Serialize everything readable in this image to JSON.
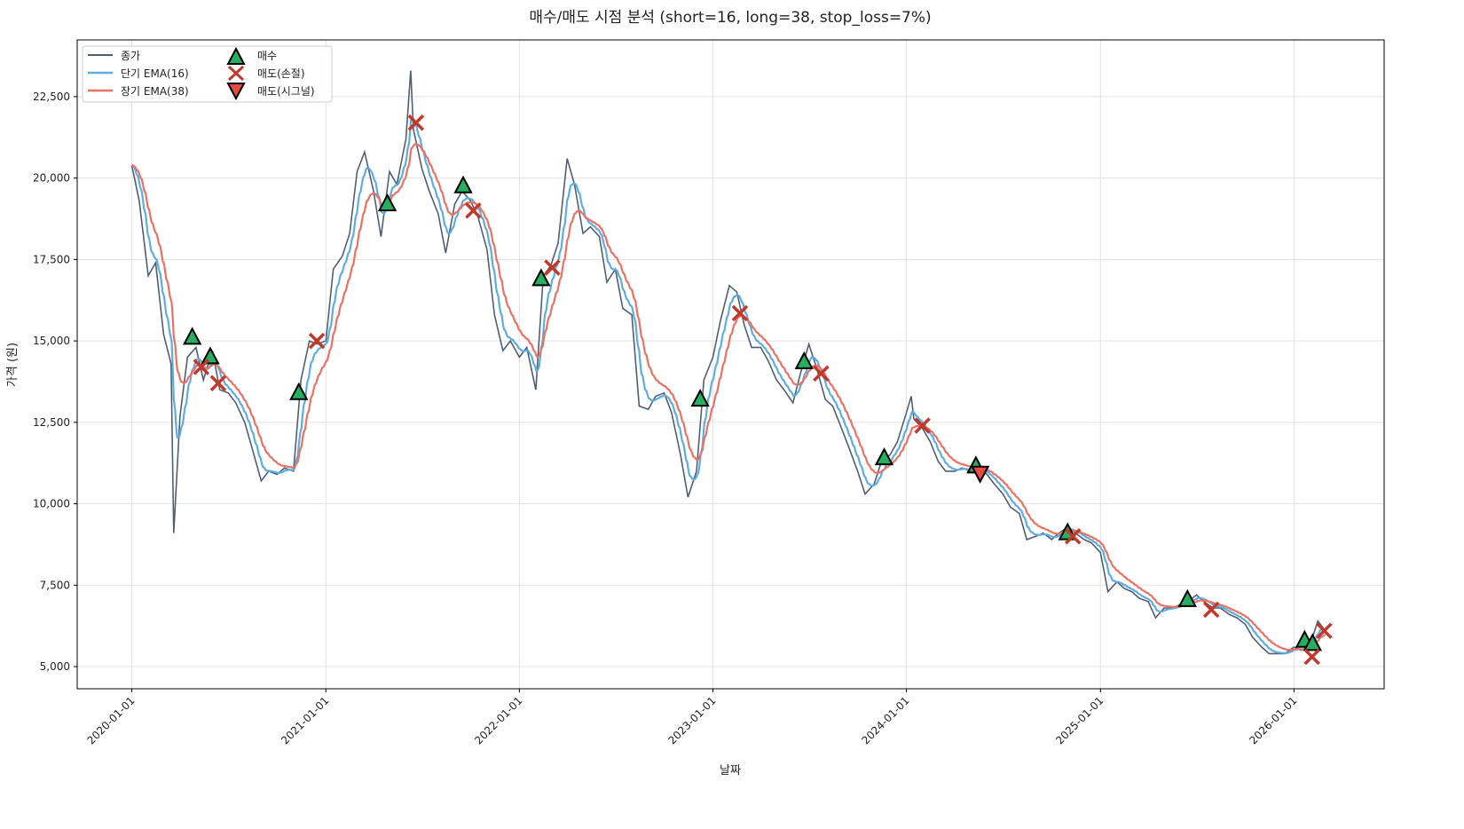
{
  "chart_data": {
    "type": "line",
    "title": "매수/매도 시점 분석 (short=16, long=38, stop_loss=7%)",
    "xlabel": "날짜",
    "ylabel": "가격 (원)",
    "ylim": [
      4320,
      24240
    ],
    "xlim": [
      "2019-09-20",
      "2026-06-20"
    ],
    "grid": true,
    "legend_position": "top-left",
    "yticks": [
      5000,
      7500,
      10000,
      12500,
      15000,
      17500,
      20000,
      22500
    ],
    "ytick_labels": [
      "5,000",
      "7,500",
      "10,000",
      "12,500",
      "15,000",
      "17,500",
      "20,000",
      "22,500"
    ],
    "xticks": [
      "2020-01-01",
      "2021-01-01",
      "2022-01-01",
      "2023-01-01",
      "2024-01-01",
      "2025-01-01",
      "2026-01-01"
    ],
    "legend": {
      "close": "종가",
      "short_ema": "단기 EMA(16)",
      "long_ema": "장기 EMA(38)",
      "buy": "매수",
      "sell_stop": "매도(손절)",
      "sell_signal": "매도(시그널)"
    },
    "colors": {
      "close": "#4f5f73",
      "short_ema": "#5dade2",
      "long_ema": "#ec7063",
      "buy": "#27ae60",
      "sell_stop": "#c0392b",
      "sell_signal": "#e74c3c"
    },
    "ema_spans": {
      "short": 16,
      "long": 38
    },
    "close": [
      [
        "2020-01-01",
        20400
      ],
      [
        "2020-01-15",
        19300
      ],
      [
        "2020-02-01",
        17000
      ],
      [
        "2020-02-15",
        17400
      ],
      [
        "2020-03-01",
        15200
      ],
      [
        "2020-03-15",
        14300
      ],
      [
        "2020-03-20",
        9100
      ],
      [
        "2020-04-01",
        12700
      ],
      [
        "2020-04-15",
        14500
      ],
      [
        "2020-05-01",
        14800
      ],
      [
        "2020-05-15",
        13800
      ],
      [
        "2020-06-01",
        14700
      ],
      [
        "2020-06-15",
        13500
      ],
      [
        "2020-07-01",
        13400
      ],
      [
        "2020-07-15",
        13100
      ],
      [
        "2020-08-01",
        12500
      ],
      [
        "2020-08-15",
        11700
      ],
      [
        "2020-09-01",
        10700
      ],
      [
        "2020-09-15",
        11000
      ],
      [
        "2020-10-01",
        10900
      ],
      [
        "2020-10-15",
        11100
      ],
      [
        "2020-11-01",
        11000
      ],
      [
        "2020-11-15",
        13800
      ],
      [
        "2020-12-01",
        15000
      ],
      [
        "2020-12-15",
        14900
      ],
      [
        "2021-01-01",
        15000
      ],
      [
        "2021-01-15",
        17200
      ],
      [
        "2021-02-01",
        17600
      ],
      [
        "2021-02-15",
        18300
      ],
      [
        "2021-03-01",
        20200
      ],
      [
        "2021-03-15",
        20800
      ],
      [
        "2021-04-01",
        19600
      ],
      [
        "2021-04-15",
        18200
      ],
      [
        "2021-05-01",
        20200
      ],
      [
        "2021-05-15",
        19800
      ],
      [
        "2021-06-01",
        21200
      ],
      [
        "2021-06-10",
        23300
      ],
      [
        "2021-06-15",
        21500
      ],
      [
        "2021-07-01",
        20300
      ],
      [
        "2021-07-15",
        19600
      ],
      [
        "2021-08-01",
        18900
      ],
      [
        "2021-08-15",
        17700
      ],
      [
        "2021-09-01",
        19200
      ],
      [
        "2021-09-15",
        19600
      ],
      [
        "2021-10-01",
        19300
      ],
      [
        "2021-10-15",
        18800
      ],
      [
        "2021-11-01",
        17800
      ],
      [
        "2021-11-15",
        15800
      ],
      [
        "2021-12-01",
        14700
      ],
      [
        "2021-12-15",
        15000
      ],
      [
        "2022-01-01",
        14500
      ],
      [
        "2022-01-15",
        14800
      ],
      [
        "2022-02-01",
        13500
      ],
      [
        "2022-02-15",
        17000
      ],
      [
        "2022-03-01",
        17300
      ],
      [
        "2022-03-15",
        18000
      ],
      [
        "2022-04-01",
        20600
      ],
      [
        "2022-04-15",
        19800
      ],
      [
        "2022-05-01",
        18300
      ],
      [
        "2022-05-15",
        18500
      ],
      [
        "2022-06-01",
        18200
      ],
      [
        "2022-06-15",
        16800
      ],
      [
        "2022-07-01",
        17200
      ],
      [
        "2022-07-15",
        16000
      ],
      [
        "2022-08-01",
        15800
      ],
      [
        "2022-08-15",
        13000
      ],
      [
        "2022-09-01",
        12900
      ],
      [
        "2022-09-15",
        13300
      ],
      [
        "2022-10-01",
        13400
      ],
      [
        "2022-10-15",
        12800
      ],
      [
        "2022-11-01",
        11500
      ],
      [
        "2022-11-15",
        10200
      ],
      [
        "2022-12-01",
        11000
      ],
      [
        "2022-12-15",
        13800
      ],
      [
        "2023-01-01",
        14500
      ],
      [
        "2023-01-15",
        15600
      ],
      [
        "2023-02-01",
        16700
      ],
      [
        "2023-02-15",
        16500
      ],
      [
        "2023-03-01",
        15500
      ],
      [
        "2023-03-15",
        14800
      ],
      [
        "2023-04-01",
        14800
      ],
      [
        "2023-04-15",
        14400
      ],
      [
        "2023-05-01",
        13800
      ],
      [
        "2023-05-15",
        13500
      ],
      [
        "2023-06-01",
        13100
      ],
      [
        "2023-06-15",
        14000
      ],
      [
        "2023-07-01",
        14900
      ],
      [
        "2023-07-15",
        14200
      ],
      [
        "2023-08-01",
        13200
      ],
      [
        "2023-08-15",
        13000
      ],
      [
        "2023-09-01",
        12300
      ],
      [
        "2023-09-15",
        11700
      ],
      [
        "2023-10-01",
        11000
      ],
      [
        "2023-10-15",
        10300
      ],
      [
        "2023-11-01",
        10600
      ],
      [
        "2023-11-15",
        11300
      ],
      [
        "2023-12-01",
        11500
      ],
      [
        "2023-12-15",
        11900
      ],
      [
        "2024-01-01",
        12800
      ],
      [
        "2024-01-10",
        13300
      ],
      [
        "2024-01-15",
        12600
      ],
      [
        "2024-02-01",
        12300
      ],
      [
        "2024-02-15",
        11900
      ],
      [
        "2024-03-01",
        11300
      ],
      [
        "2024-03-15",
        11000
      ],
      [
        "2024-04-01",
        11000
      ],
      [
        "2024-04-15",
        11100
      ],
      [
        "2024-05-01",
        11000
      ],
      [
        "2024-05-15",
        11100
      ],
      [
        "2024-06-01",
        10900
      ],
      [
        "2024-06-15",
        10600
      ],
      [
        "2024-07-01",
        10300
      ],
      [
        "2024-07-15",
        9900
      ],
      [
        "2024-08-01",
        9700
      ],
      [
        "2024-08-15",
        8900
      ],
      [
        "2024-09-01",
        9000
      ],
      [
        "2024-09-15",
        9100
      ],
      [
        "2024-10-01",
        8900
      ],
      [
        "2024-10-15",
        9100
      ],
      [
        "2024-11-01",
        9300
      ],
      [
        "2024-11-15",
        9100
      ],
      [
        "2024-12-01",
        8900
      ],
      [
        "2024-12-15",
        8800
      ],
      [
        "2025-01-01",
        8500
      ],
      [
        "2025-01-15",
        7300
      ],
      [
        "2025-02-01",
        7600
      ],
      [
        "2025-02-15",
        7400
      ],
      [
        "2025-03-01",
        7300
      ],
      [
        "2025-03-15",
        7100
      ],
      [
        "2025-04-01",
        7000
      ],
      [
        "2025-04-15",
        6500
      ],
      [
        "2025-05-01",
        6800
      ],
      [
        "2025-05-15",
        6800
      ],
      [
        "2025-06-01",
        6900
      ],
      [
        "2025-06-15",
        7000
      ],
      [
        "2025-07-01",
        7200
      ],
      [
        "2025-07-15",
        7000
      ],
      [
        "2025-08-01",
        6800
      ],
      [
        "2025-08-15",
        6800
      ],
      [
        "2025-09-01",
        6600
      ],
      [
        "2025-09-15",
        6500
      ],
      [
        "2025-10-01",
        6300
      ],
      [
        "2025-10-15",
        5900
      ],
      [
        "2025-11-01",
        5600
      ],
      [
        "2025-11-15",
        5400
      ],
      [
        "2025-12-01",
        5400
      ],
      [
        "2025-12-15",
        5400
      ],
      [
        "2026-01-01",
        5600
      ],
      [
        "2026-01-15",
        5500
      ],
      [
        "2026-02-01",
        5700
      ],
      [
        "2026-02-15",
        6400
      ],
      [
        "2026-03-01",
        6100
      ]
    ],
    "buy_signals": [
      [
        "2020-04-24",
        15100
      ],
      [
        "2020-05-28",
        14500
      ],
      [
        "2020-11-11",
        13400
      ],
      [
        "2021-04-27",
        19200
      ],
      [
        "2021-09-17",
        19750
      ],
      [
        "2022-02-11",
        16900
      ],
      [
        "2022-12-08",
        13200
      ],
      [
        "2023-06-22",
        14350
      ],
      [
        "2023-11-20",
        11400
      ],
      [
        "2024-05-11",
        11150
      ],
      [
        "2024-10-31",
        9100
      ],
      [
        "2025-06-14",
        7050
      ],
      [
        "2026-01-21",
        5800
      ],
      [
        "2026-02-05",
        5700
      ]
    ],
    "stop_loss_sells": [
      [
        "2020-05-11",
        14200
      ],
      [
        "2020-06-12",
        13700
      ],
      [
        "2020-12-15",
        15000
      ],
      [
        "2021-06-20",
        21700
      ],
      [
        "2021-10-06",
        19000
      ],
      [
        "2022-03-04",
        17250
      ],
      [
        "2023-02-21",
        15850
      ],
      [
        "2023-07-24",
        14000
      ],
      [
        "2024-01-31",
        12400
      ],
      [
        "2024-11-10",
        9000
      ],
      [
        "2025-07-29",
        6750
      ],
      [
        "2026-02-04",
        5300
      ],
      [
        "2026-02-27",
        6100
      ]
    ],
    "signal_sells": [
      [
        "2024-05-19",
        10950
      ]
    ]
  }
}
